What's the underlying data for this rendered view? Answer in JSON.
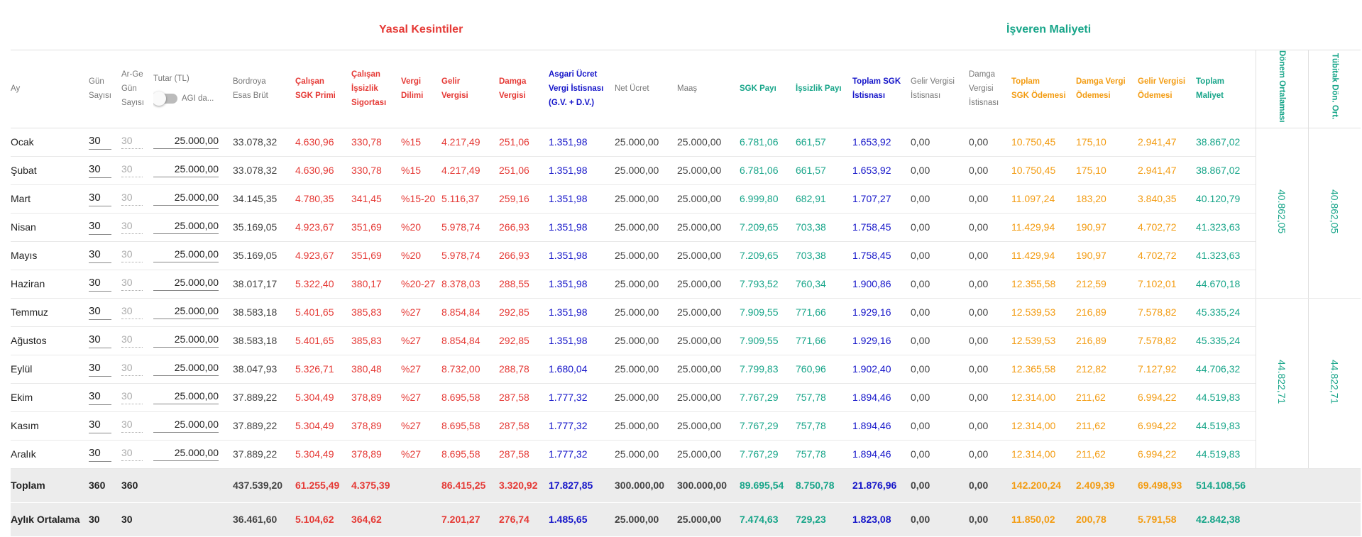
{
  "sections": {
    "yasal": "Yasal Kesintiler",
    "isveren": "İşveren Maliyeti"
  },
  "headers": {
    "ay": "Ay",
    "gun": [
      "Gün",
      "Sayısı"
    ],
    "arge": [
      "Ar-Ge",
      "Gün",
      "Sayısı"
    ],
    "tutar": "Tutar (TL)",
    "agi": "AGI da...",
    "bordroya": [
      "Bordroya",
      "Esas Brüt"
    ],
    "calisan_sgk": [
      "Çalışan",
      "SGK Primi"
    ],
    "calisan_issizlik": [
      "Çalışan",
      "İşsizlik",
      "Sigortası"
    ],
    "vergi_dilimi": [
      "Vergi",
      "Dilimi"
    ],
    "gelir_vergisi": [
      "Gelir",
      "Vergisi"
    ],
    "damga_vergisi": [
      "Damga",
      "Vergisi"
    ],
    "asgari": [
      "Asgari Ücret",
      "Vergi İstisnası",
      "(G.V. + D.V.)"
    ],
    "net_ucret": "Net Ücret",
    "maas": "Maaş",
    "sgk_payi": "SGK Payı",
    "issizlik_payi": "İşsizlik Payı",
    "toplam_sgk_istisna": [
      "Toplam SGK",
      "İstisnası"
    ],
    "gelir_istisna": [
      "Gelir Vergisi",
      "İstisnası"
    ],
    "damga_istisna": [
      "Damga",
      "Vergisi",
      "İstisnası"
    ],
    "toplam_sgk_odemesi": [
      "Toplam",
      "SGK Ödemesi"
    ],
    "damga_odemesi": [
      "Damga Vergi",
      "Ödemesi"
    ],
    "gelir_odemesi": [
      "Gelir Vergisi",
      "Ödemesi"
    ],
    "toplam_maliyet": [
      "Toplam",
      "Maliyet"
    ],
    "donem_ort": "Dönem Ortalaması",
    "tubitak": "Tübitak Dön. Ort."
  },
  "rows": [
    {
      "ay": "Ocak",
      "gun": "30",
      "arge": "30",
      "tutar": "25.000,00",
      "brut": "33.078,32",
      "sgk_primi": "4.630,96",
      "issizlik": "330,78",
      "dilim": "%15",
      "gelir": "4.217,49",
      "damga": "251,06",
      "asgari": "1.351,98",
      "net": "25.000,00",
      "maas": "25.000,00",
      "sgk_payi": "6.781,06",
      "issizlik_payi": "661,57",
      "toplam_sgk_ist": "1.653,92",
      "gelir_ist": "0,00",
      "damga_ist": "0,00",
      "toplam_sgk_od": "10.750,45",
      "damga_od": "175,10",
      "gelir_od": "2.941,47",
      "maliyet": "38.867,02"
    },
    {
      "ay": "Şubat",
      "gun": "30",
      "arge": "30",
      "tutar": "25.000,00",
      "brut": "33.078,32",
      "sgk_primi": "4.630,96",
      "issizlik": "330,78",
      "dilim": "%15",
      "gelir": "4.217,49",
      "damga": "251,06",
      "asgari": "1.351,98",
      "net": "25.000,00",
      "maas": "25.000,00",
      "sgk_payi": "6.781,06",
      "issizlik_payi": "661,57",
      "toplam_sgk_ist": "1.653,92",
      "gelir_ist": "0,00",
      "damga_ist": "0,00",
      "toplam_sgk_od": "10.750,45",
      "damga_od": "175,10",
      "gelir_od": "2.941,47",
      "maliyet": "38.867,02"
    },
    {
      "ay": "Mart",
      "gun": "30",
      "arge": "30",
      "tutar": "25.000,00",
      "brut": "34.145,35",
      "sgk_primi": "4.780,35",
      "issizlik": "341,45",
      "dilim": "%15-20",
      "gelir": "5.116,37",
      "damga": "259,16",
      "asgari": "1.351,98",
      "net": "25.000,00",
      "maas": "25.000,00",
      "sgk_payi": "6.999,80",
      "issizlik_payi": "682,91",
      "toplam_sgk_ist": "1.707,27",
      "gelir_ist": "0,00",
      "damga_ist": "0,00",
      "toplam_sgk_od": "11.097,24",
      "damga_od": "183,20",
      "gelir_od": "3.840,35",
      "maliyet": "40.120,79"
    },
    {
      "ay": "Nisan",
      "gun": "30",
      "arge": "30",
      "tutar": "25.000,00",
      "brut": "35.169,05",
      "sgk_primi": "4.923,67",
      "issizlik": "351,69",
      "dilim": "%20",
      "gelir": "5.978,74",
      "damga": "266,93",
      "asgari": "1.351,98",
      "net": "25.000,00",
      "maas": "25.000,00",
      "sgk_payi": "7.209,65",
      "issizlik_payi": "703,38",
      "toplam_sgk_ist": "1.758,45",
      "gelir_ist": "0,00",
      "damga_ist": "0,00",
      "toplam_sgk_od": "11.429,94",
      "damga_od": "190,97",
      "gelir_od": "4.702,72",
      "maliyet": "41.323,63"
    },
    {
      "ay": "Mayıs",
      "gun": "30",
      "arge": "30",
      "tutar": "25.000,00",
      "brut": "35.169,05",
      "sgk_primi": "4.923,67",
      "issizlik": "351,69",
      "dilim": "%20",
      "gelir": "5.978,74",
      "damga": "266,93",
      "asgari": "1.351,98",
      "net": "25.000,00",
      "maas": "25.000,00",
      "sgk_payi": "7.209,65",
      "issizlik_payi": "703,38",
      "toplam_sgk_ist": "1.758,45",
      "gelir_ist": "0,00",
      "damga_ist": "0,00",
      "toplam_sgk_od": "11.429,94",
      "damga_od": "190,97",
      "gelir_od": "4.702,72",
      "maliyet": "41.323,63"
    },
    {
      "ay": "Haziran",
      "gun": "30",
      "arge": "30",
      "tutar": "25.000,00",
      "brut": "38.017,17",
      "sgk_primi": "5.322,40",
      "issizlik": "380,17",
      "dilim": "%20-27",
      "gelir": "8.378,03",
      "damga": "288,55",
      "asgari": "1.351,98",
      "net": "25.000,00",
      "maas": "25.000,00",
      "sgk_payi": "7.793,52",
      "issizlik_payi": "760,34",
      "toplam_sgk_ist": "1.900,86",
      "gelir_ist": "0,00",
      "damga_ist": "0,00",
      "toplam_sgk_od": "12.355,58",
      "damga_od": "212,59",
      "gelir_od": "7.102,01",
      "maliyet": "44.670,18"
    },
    {
      "ay": "Temmuz",
      "gun": "30",
      "arge": "30",
      "tutar": "25.000,00",
      "brut": "38.583,18",
      "sgk_primi": "5.401,65",
      "issizlik": "385,83",
      "dilim": "%27",
      "gelir": "8.854,84",
      "damga": "292,85",
      "asgari": "1.351,98",
      "net": "25.000,00",
      "maas": "25.000,00",
      "sgk_payi": "7.909,55",
      "issizlik_payi": "771,66",
      "toplam_sgk_ist": "1.929,16",
      "gelir_ist": "0,00",
      "damga_ist": "0,00",
      "toplam_sgk_od": "12.539,53",
      "damga_od": "216,89",
      "gelir_od": "7.578,82",
      "maliyet": "45.335,24"
    },
    {
      "ay": "Ağustos",
      "gun": "30",
      "arge": "30",
      "tutar": "25.000,00",
      "brut": "38.583,18",
      "sgk_primi": "5.401,65",
      "issizlik": "385,83",
      "dilim": "%27",
      "gelir": "8.854,84",
      "damga": "292,85",
      "asgari": "1.351,98",
      "net": "25.000,00",
      "maas": "25.000,00",
      "sgk_payi": "7.909,55",
      "issizlik_payi": "771,66",
      "toplam_sgk_ist": "1.929,16",
      "gelir_ist": "0,00",
      "damga_ist": "0,00",
      "toplam_sgk_od": "12.539,53",
      "damga_od": "216,89",
      "gelir_od": "7.578,82",
      "maliyet": "45.335,24"
    },
    {
      "ay": "Eylül",
      "gun": "30",
      "arge": "30",
      "tutar": "25.000,00",
      "brut": "38.047,93",
      "sgk_primi": "5.326,71",
      "issizlik": "380,48",
      "dilim": "%27",
      "gelir": "8.732,00",
      "damga": "288,78",
      "asgari": "1.680,04",
      "net": "25.000,00",
      "maas": "25.000,00",
      "sgk_payi": "7.799,83",
      "issizlik_payi": "760,96",
      "toplam_sgk_ist": "1.902,40",
      "gelir_ist": "0,00",
      "damga_ist": "0,00",
      "toplam_sgk_od": "12.365,58",
      "damga_od": "212,82",
      "gelir_od": "7.127,92",
      "maliyet": "44.706,32"
    },
    {
      "ay": "Ekim",
      "gun": "30",
      "arge": "30",
      "tutar": "25.000,00",
      "brut": "37.889,22",
      "sgk_primi": "5.304,49",
      "issizlik": "378,89",
      "dilim": "%27",
      "gelir": "8.695,58",
      "damga": "287,58",
      "asgari": "1.777,32",
      "net": "25.000,00",
      "maas": "25.000,00",
      "sgk_payi": "7.767,29",
      "issizlik_payi": "757,78",
      "toplam_sgk_ist": "1.894,46",
      "gelir_ist": "0,00",
      "damga_ist": "0,00",
      "toplam_sgk_od": "12.314,00",
      "damga_od": "211,62",
      "gelir_od": "6.994,22",
      "maliyet": "44.519,83"
    },
    {
      "ay": "Kasım",
      "gun": "30",
      "arge": "30",
      "tutar": "25.000,00",
      "brut": "37.889,22",
      "sgk_primi": "5.304,49",
      "issizlik": "378,89",
      "dilim": "%27",
      "gelir": "8.695,58",
      "damga": "287,58",
      "asgari": "1.777,32",
      "net": "25.000,00",
      "maas": "25.000,00",
      "sgk_payi": "7.767,29",
      "issizlik_payi": "757,78",
      "toplam_sgk_ist": "1.894,46",
      "gelir_ist": "0,00",
      "damga_ist": "0,00",
      "toplam_sgk_od": "12.314,00",
      "damga_od": "211,62",
      "gelir_od": "6.994,22",
      "maliyet": "44.519,83"
    },
    {
      "ay": "Aralık",
      "gun": "30",
      "arge": "30",
      "tutar": "25.000,00",
      "brut": "37.889,22",
      "sgk_primi": "5.304,49",
      "issizlik": "378,89",
      "dilim": "%27",
      "gelir": "8.695,58",
      "damga": "287,58",
      "asgari": "1.777,32",
      "net": "25.000,00",
      "maas": "25.000,00",
      "sgk_payi": "7.767,29",
      "issizlik_payi": "757,78",
      "toplam_sgk_ist": "1.894,46",
      "gelir_ist": "0,00",
      "damga_ist": "0,00",
      "toplam_sgk_od": "12.314,00",
      "damga_od": "211,62",
      "gelir_od": "6.994,22",
      "maliyet": "44.519,83"
    }
  ],
  "period": {
    "h1": "40.862,05",
    "h1_tubitak": "40.862,05",
    "h2": "44.822,71",
    "h2_tubitak": "44.822,71"
  },
  "totals": {
    "label": "Toplam",
    "gun": "360",
    "arge": "360",
    "brut": "437.539,20",
    "sgk_primi": "61.255,49",
    "issizlik": "4.375,39",
    "gelir": "86.415,25",
    "damga": "3.320,92",
    "asgari": "17.827,85",
    "net": "300.000,00",
    "maas": "300.000,00",
    "sgk_payi": "89.695,54",
    "issizlik_payi": "8.750,78",
    "toplam_sgk_ist": "21.876,96",
    "gelir_ist": "0,00",
    "damga_ist": "0,00",
    "toplam_sgk_od": "142.200,24",
    "damga_od": "2.409,39",
    "gelir_od": "69.498,93",
    "maliyet": "514.108,56"
  },
  "average": {
    "label": "Aylık Ortalama",
    "gun": "30",
    "arge": "30",
    "brut": "36.461,60",
    "sgk_primi": "5.104,62",
    "issizlik": "364,62",
    "gelir": "7.201,27",
    "damga": "276,74",
    "asgari": "1.485,65",
    "net": "25.000,00",
    "maas": "25.000,00",
    "sgk_payi": "7.474,63",
    "issizlik_payi": "729,23",
    "toplam_sgk_ist": "1.823,08",
    "gelir_ist": "0,00",
    "damga_ist": "0,00",
    "toplam_sgk_od": "11.850,02",
    "damga_od": "200,78",
    "gelir_od": "5.791,58",
    "maliyet": "42.842,38"
  }
}
